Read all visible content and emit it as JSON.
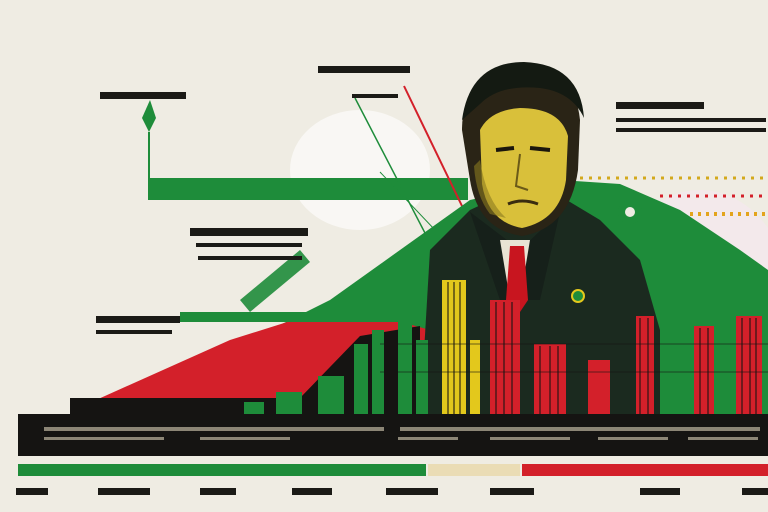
{
  "canvas": {
    "background": "#efece3"
  },
  "palette": {
    "green": "#1e8c3a",
    "red": "#d3202a",
    "yellow": "#e3c81c",
    "black": "#151412",
    "cream": "#efece3"
  },
  "art": {
    "subject": "portrait-of-man-in-dark-suit",
    "note_text": ""
  }
}
